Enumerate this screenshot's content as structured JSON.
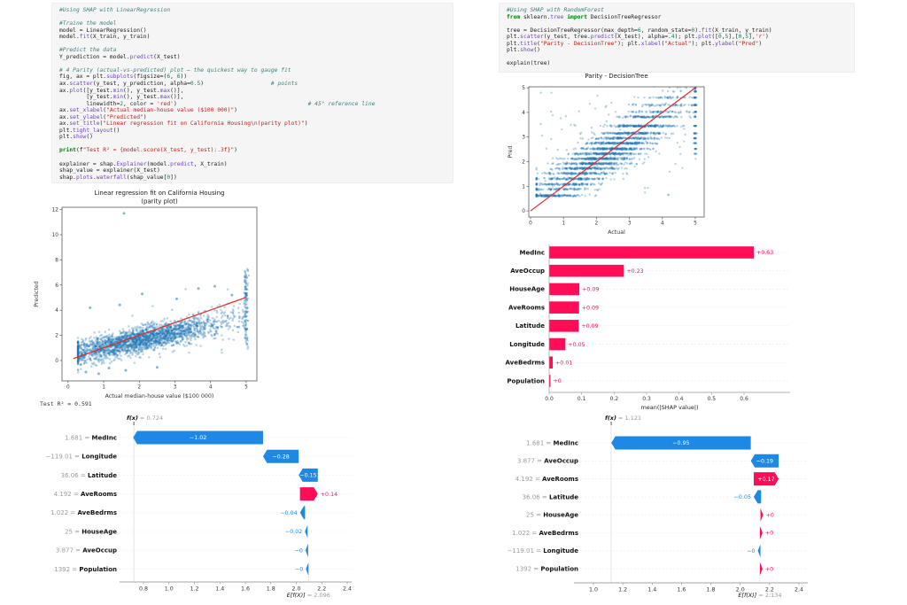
{
  "colors": {
    "shap_positive_red": "#ff0d57",
    "shap_negative_blue": "#1e88e5",
    "scatter_blue": "#1f77b4",
    "reference_line_red": "#e22b2b",
    "code_cell_bg": "#f5f5f5"
  },
  "left_column": {
    "code": {
      "lines": [
        "#Using SHAP with LinearRegression",
        "",
        "#Traine the model",
        "model = LinearRegression()",
        "model.fit(X_train, y_train)",
        "",
        "#Predict the data",
        "Y_prediction = model.predict(X_test)",
        "",
        "# 4 Parity (actual-vs-predicted) plot — the quickest way to gauge fit",
        "fig, ax = plt.subplots(figsize=(6, 6))",
        "ax.scatter(y_test, y_prediction, alpha=0.5)                    # points",
        "ax.plot([y_test.min(), y_test.max()],",
        "        [y_test.min(), y_test.max()],",
        "        linewidth=2, color = 'red')                                       # 45° reference line",
        "ax.set_xlabel(\"Actual median-house value ($100 000)\")",
        "ax.set_ylabel(\"Predicted\")",
        "ax.set_title(\"Linear regression fit on California Housing\\n(parity plot)\")",
        "plt.tight_layout()",
        "plt.show()",
        "",
        "print(f\"Test R² = {model.score(X_test, y_test):.3f}\")",
        "",
        "explainer = shap.Explainer(model.predict, X_train)",
        "shap_value = explainer(X_test)",
        "shap.plots.waterfall(shap_value[0])"
      ]
    },
    "test_r2": "Test R² = 0.591"
  },
  "right_column": {
    "code": {
      "lines": [
        "#Using SHAP with RandomForest",
        "from sklearn.tree import DecisionTreeRegressor",
        "",
        "tree = DecisionTreeRegressor(max_depth=6, random_state=0).fit(X_train, y_train)",
        "plt.scatter(y_test, tree.predict(X_test), alpha=.4); plt.plot([0,5],[0,5],'r')",
        "plt.title(\"Parity - DecisionTree\"); plt.xlabel(\"Actual\"); plt.ylabel(\"Pred\")",
        "plt.show()",
        "",
        "explain(tree)"
      ]
    }
  },
  "chart_data": [
    {
      "id": "left_parity",
      "type": "scatter",
      "title": [
        "Linear regression fit on California Housing",
        "(parity plot)"
      ],
      "xlabel": "Actual median-house value ($100 000)",
      "ylabel": "Predicted",
      "xticks": [
        0,
        1,
        2,
        3,
        4,
        5
      ],
      "yticks": [
        0,
        2,
        4,
        6,
        8,
        10,
        12
      ],
      "xlim": [
        -0.17,
        5.3
      ],
      "ylim": [
        -1.62,
        12.18
      ],
      "point_color": "#1f77b4",
      "line": {
        "x1": 0.15,
        "y1": 0.15,
        "x2": 5.0,
        "y2": 5.02,
        "color": "#e22b2b"
      },
      "pattern": "dense semi-transparent blue cloud rising from about (0.3,0.5) to (5,3.5), vertical stripe of points at x=5 spanning y 0.9 to 7.3, grid off",
      "outliers": [
        [
          1.57,
          11.7
        ],
        [
          2.08,
          5.3
        ],
        [
          1.45,
          4.42
        ],
        [
          0.62,
          4.2
        ],
        [
          3.66,
          5.72
        ],
        [
          4.12,
          5.9
        ],
        [
          4.6,
          5.2
        ],
        [
          3.05,
          4.9
        ],
        [
          0.5,
          -0.92
        ],
        [
          0.86,
          -1.05
        ],
        [
          1.62,
          -0.78
        ],
        [
          2.5,
          -0.55
        ],
        [
          1.15,
          -0.6
        ]
      ]
    },
    {
      "id": "right_parity",
      "type": "scatter",
      "title": [
        "Parity - DecisionTree"
      ],
      "xlabel": "Actual",
      "ylabel": "Pred",
      "xticks": [
        0,
        1,
        2,
        3,
        4,
        5
      ],
      "yticks": [
        0,
        1,
        2,
        3,
        4,
        5
      ],
      "xlim": [
        -0.054,
        5.27
      ],
      "ylim": [
        -0.25,
        5.04
      ],
      "point_color": "#1f77b4",
      "line": {
        "x1": 0,
        "y1": 0,
        "x2": 5,
        "y2": 5,
        "color": "#e22b2b"
      },
      "pattern": "decision-tree predictions form discrete horizontal bands of points, diagonal red reference line, grid off",
      "bands": [
        0.62,
        0.88,
        1.08,
        1.3,
        1.52,
        1.72,
        1.92,
        2.12,
        2.32,
        2.52,
        2.75,
        2.95,
        3.15,
        3.45,
        3.82,
        4.02,
        4.3,
        4.6,
        4.85,
        5.0
      ]
    },
    {
      "id": "shap_bar",
      "type": "bar",
      "categories": [
        "MedInc",
        "AveOccup",
        "HouseAge",
        "AveRooms",
        "Latitude",
        "Longitude",
        "AveBedrms",
        "Population"
      ],
      "values": [
        0.63,
        0.23,
        0.093,
        0.092,
        0.091,
        0.05,
        0.011,
        0.004
      ],
      "value_labels": [
        "+0.63",
        "+0.23",
        "+0.09",
        "+0.09",
        "+0.09",
        "+0.05",
        "+0.01",
        "+0"
      ],
      "xlabel": "mean(|SHAP value|)",
      "xticks": [
        0,
        0.1,
        0.2,
        0.3,
        0.4,
        0.5,
        0.6
      ],
      "xlim": [
        0,
        0.68
      ],
      "bar_color": "#ff0d57"
    },
    {
      "id": "left_waterfall",
      "type": "waterfall",
      "fx_label": "f(x)",
      "fx_value": "0.724",
      "fx": 0.724,
      "ef_label": "E[f(X)]",
      "ef_value": "2.096",
      "ef": 2.096,
      "xticks": [
        0.8,
        1.0,
        1.2,
        1.4,
        1.6,
        1.8,
        2.0,
        2.2,
        2.4
      ],
      "pos_color": "#ff0d57",
      "neg_color": "#1e88e5",
      "rows": [
        {
          "value": "1.681",
          "name": "MedInc",
          "contrib": -1.02,
          "label": "−1.02",
          "inside": true
        },
        {
          "value": "−119.01",
          "name": "Longitude",
          "contrib": -0.28,
          "label": "−0.28",
          "inside": true
        },
        {
          "value": "36.06",
          "name": "Latitude",
          "contrib": -0.15,
          "label": "−0.15",
          "inside": true
        },
        {
          "value": "4.192",
          "name": "AveRooms",
          "contrib": 0.14,
          "label": "+0.14",
          "inside": false
        },
        {
          "value": "1.022",
          "name": "AveBedrms",
          "contrib": -0.04,
          "label": "−0.04",
          "inside": false
        },
        {
          "value": "25",
          "name": "HouseAge",
          "contrib": -0.02,
          "label": "−0.02",
          "inside": false
        },
        {
          "value": "3.877",
          "name": "AveOccup",
          "contrib": -0.004,
          "label": "−0",
          "inside": false
        },
        {
          "value": "1392",
          "name": "Population",
          "contrib": -0.003,
          "label": "−0",
          "inside": false
        }
      ]
    },
    {
      "id": "right_waterfall",
      "type": "waterfall",
      "fx_label": "f(x)",
      "fx_value": "1.121",
      "fx": 1.121,
      "ef_label": "E[f(X)]",
      "ef_value": "2.134",
      "ef": 2.134,
      "xticks": [
        1.0,
        1.2,
        1.4,
        1.6,
        1.8,
        2.0,
        2.2,
        2.4
      ],
      "pos_color": "#ff0d57",
      "neg_color": "#1e88e5",
      "rows": [
        {
          "value": "1.681",
          "name": "MedInc",
          "contrib": -0.95,
          "label": "−0.95",
          "inside": true
        },
        {
          "value": "3.877",
          "name": "AveOccup",
          "contrib": -0.19,
          "label": "−0.19",
          "inside": true
        },
        {
          "value": "4.192",
          "name": "AveRooms",
          "contrib": 0.17,
          "label": "+0.17",
          "inside": true
        },
        {
          "value": "36.06",
          "name": "Latitude",
          "contrib": -0.05,
          "label": "−0.05",
          "inside": false
        },
        {
          "value": "25",
          "name": "HouseAge",
          "contrib": 0.004,
          "label": "+0",
          "inside": false
        },
        {
          "value": "1.022",
          "name": "AveBedrms",
          "contrib": 0.004,
          "label": "+0",
          "inside": false
        },
        {
          "value": "−119.01",
          "name": "Longitude",
          "contrib": -0.004,
          "label": "−0",
          "inside": false
        },
        {
          "value": "1392",
          "name": "Population",
          "contrib": 0.004,
          "label": "+0",
          "inside": false
        }
      ]
    }
  ]
}
